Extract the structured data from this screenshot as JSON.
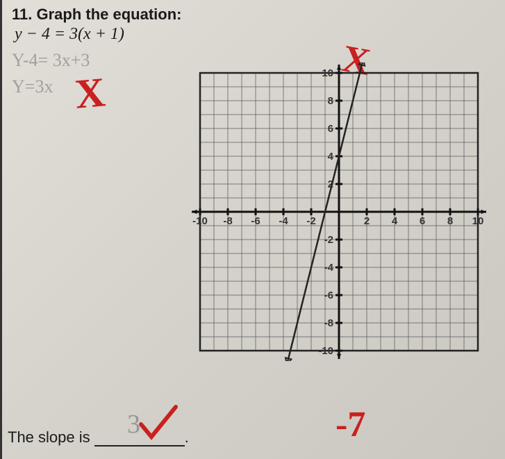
{
  "question": {
    "number": "11.",
    "prompt": "Graph the equation:",
    "equation": "y − 4 = 3(x + 1)"
  },
  "pencil_work": {
    "line1": "Y-4= 3x+3",
    "line2": "Y=3x"
  },
  "grading": {
    "x_mark1": "X",
    "x_mark2": "X",
    "checkmark": "✓",
    "score": "-7"
  },
  "slope_prompt": "The slope is",
  "slope_answer": "3",
  "chart": {
    "type": "line",
    "xlim": [
      -10,
      10
    ],
    "ylim": [
      -10,
      10
    ],
    "tick_step": 2,
    "x_ticks": [
      -10,
      -8,
      -6,
      -4,
      -2,
      2,
      4,
      6,
      8,
      10
    ],
    "y_ticks": [
      -10,
      -8,
      -6,
      -4,
      -2,
      2,
      4,
      6,
      8,
      10
    ],
    "grid_color": "#555555",
    "axis_color": "#111111",
    "background_color": "#d8d5d0",
    "line": {
      "points": [
        [
          -4,
          -12
        ],
        [
          2,
          12
        ]
      ],
      "color": "#222222",
      "width": 2.5,
      "arrows": true
    },
    "label_fontsize": 15,
    "label_fontweight": "bold"
  },
  "colors": {
    "red_pen": "#c92020",
    "pencil": "#888888",
    "print_black": "#1a1a1a"
  }
}
